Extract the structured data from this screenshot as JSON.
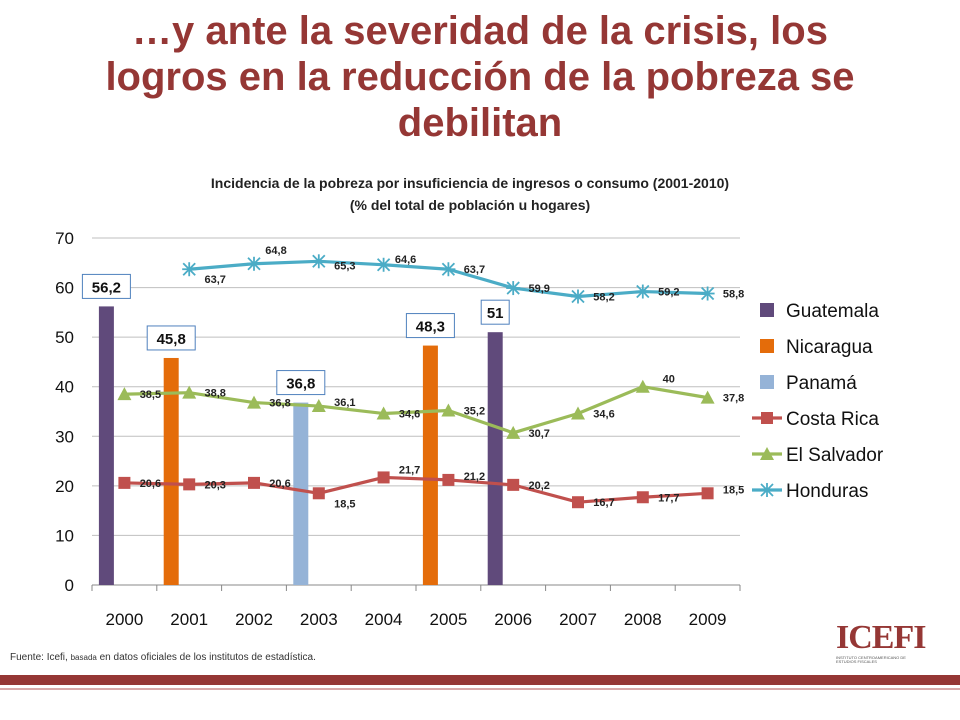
{
  "slide": {
    "title_lines": [
      "…y ante la severidad de la crisis, los",
      "logros en la reducción de la pobreza se",
      "debilitan"
    ],
    "source_prefix": "Fuente: Icefi, ",
    "source_small": "basada",
    "source_suffix": " en datos oficiales de los institutos de estadística.",
    "logo_text": "ICEFI",
    "logo_subtext": "INSTITUTO CENTROAMERICANO DE ESTUDIOS FISCALES"
  },
  "colors": {
    "title": "#953735",
    "guatemala": "#604a7b",
    "nicaragua": "#e46c0a",
    "panama": "#95b3d7",
    "costa_rica": "#c0504d",
    "el_salvador": "#9bbb59",
    "honduras": "#4bacc6"
  },
  "chart_data": {
    "type": "bar+line",
    "title_lines": [
      "Incidencia de la pobreza  por insuficiencia de ingresos o consumo (2001-2010)",
      "(% del total de población u hogares)"
    ],
    "categories": [
      "2000",
      "2001",
      "2002",
      "2003",
      "2004",
      "2005",
      "2006",
      "2007",
      "2008",
      "2009"
    ],
    "ylim": [
      0,
      70
    ],
    "yticks": [
      0,
      10,
      20,
      30,
      40,
      50,
      60,
      70
    ],
    "grid": true,
    "legend_position": "right",
    "bars": [
      {
        "name": "Guatemala",
        "category": "2000",
        "value": 56.2,
        "label": "56,2"
      },
      {
        "name": "Nicaragua",
        "category": "2001",
        "value": 45.8,
        "label": "45,8"
      },
      {
        "name": "Panamá",
        "category": "2003",
        "value": 36.8,
        "label": "36,8"
      },
      {
        "name": "Nicaragua",
        "category": "2005",
        "value": 48.3,
        "label": "48,3"
      },
      {
        "name": "Guatemala",
        "category": "2006",
        "value": 51,
        "label": "51"
      }
    ],
    "series": [
      {
        "name": "Costa Rica",
        "marker": "square",
        "values": [
          20.6,
          20.3,
          20.6,
          18.5,
          21.7,
          21.2,
          20.2,
          16.7,
          17.7,
          18.5
        ],
        "labels": [
          "20,6",
          "20,3",
          "20,6",
          "18,5",
          "21,7",
          "21,2",
          "20,2",
          "16,7",
          "17,7",
          "18,5"
        ]
      },
      {
        "name": "El Salvador",
        "marker": "triangle",
        "values": [
          38.5,
          38.8,
          36.8,
          36.1,
          34.6,
          35.2,
          30.7,
          34.6,
          40,
          37.8
        ],
        "labels": [
          "38,5",
          "38,8",
          "36,8",
          "36,1",
          "34,6",
          "35,2",
          "30,7",
          "34,6",
          "40",
          "37,8"
        ]
      },
      {
        "name": "Honduras",
        "marker": "star",
        "values": [
          null,
          63.7,
          64.8,
          65.3,
          64.6,
          63.7,
          59.9,
          58.2,
          59.2,
          58.8
        ],
        "labels": [
          null,
          "63,7",
          "64,8",
          "65,3",
          "64,6",
          "63,7",
          "59,9",
          "58,2",
          "59,2",
          "58,8"
        ]
      }
    ],
    "legend": [
      "Guatemala",
      "Nicaragua",
      "Panamá",
      "Costa Rica",
      "El Salvador",
      "Honduras"
    ]
  }
}
